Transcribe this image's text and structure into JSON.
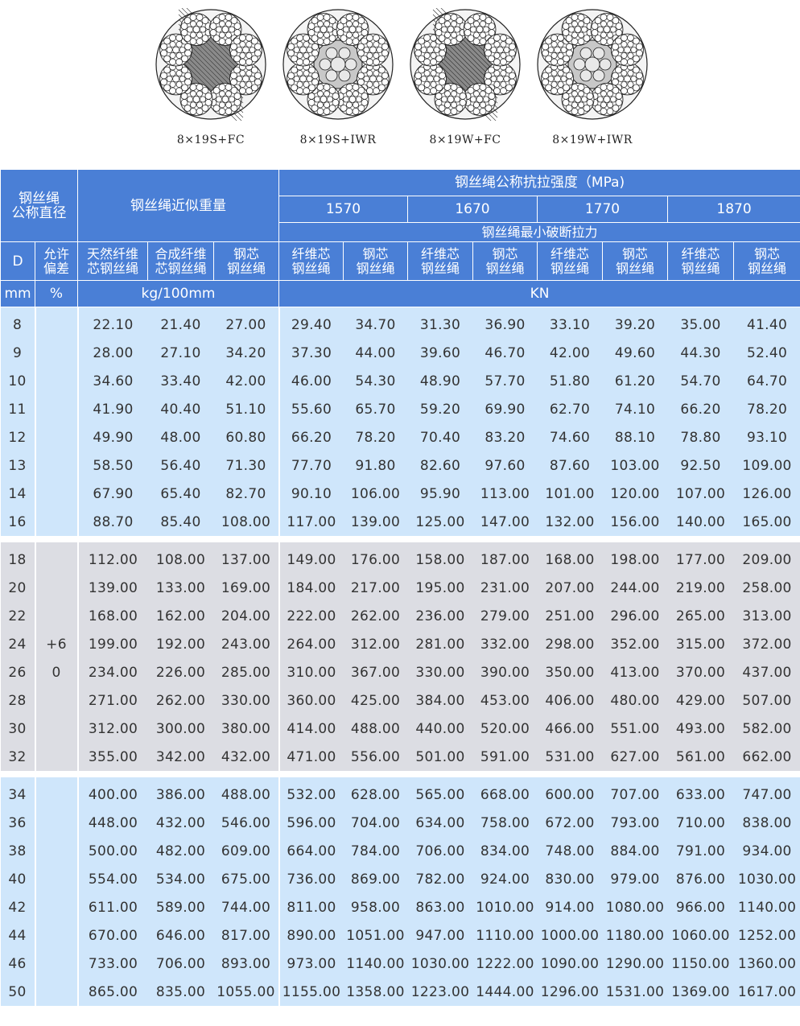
{
  "diagrams": [
    {
      "caption": "8×19S+FC",
      "core": "fiber"
    },
    {
      "caption": "8×19S+IWR",
      "core": "wire"
    },
    {
      "caption": "8×19W+FC",
      "core": "fiber"
    },
    {
      "caption": "8×19W+IWR",
      "core": "wire"
    }
  ],
  "table": {
    "h_diameter": "钢丝绳\n公称直径",
    "h_weight": "钢丝绳近似重量",
    "h_strength": "钢丝绳公称抗拉强度（MPa)",
    "grades": [
      "1570",
      "1670",
      "1770",
      "1870"
    ],
    "h_min_break": "钢丝绳最小破断拉力",
    "h_D": "D",
    "h_tol": "允许\n偏差",
    "h_w_natural": "天然纤维\n芯钢丝绳",
    "h_w_synthetic": "合成纤维\n芯钢丝绳",
    "h_w_steel": "钢芯\n钢丝绳",
    "h_fiber": "纤维芯\n钢丝绳",
    "h_steel": "钢芯\n钢丝绳",
    "u_mm": "mm",
    "u_pct": "%",
    "u_weight": "kg/100mm",
    "u_force": "KN",
    "tol_plus": "+6",
    "tol_zero": "0",
    "groups": [
      [
        [
          "8",
          "22.10",
          "21.40",
          "27.00",
          "29.40",
          "34.70",
          "31.30",
          "36.90",
          "33.10",
          "39.20",
          "35.00",
          "41.40"
        ],
        [
          "9",
          "28.00",
          "27.10",
          "34.20",
          "37.30",
          "44.00",
          "39.60",
          "46.70",
          "42.00",
          "49.60",
          "44.30",
          "52.40"
        ],
        [
          "10",
          "34.60",
          "33.40",
          "42.00",
          "46.00",
          "54.30",
          "48.90",
          "57.70",
          "51.80",
          "61.20",
          "54.70",
          "64.70"
        ],
        [
          "11",
          "41.90",
          "40.40",
          "51.10",
          "55.60",
          "65.70",
          "59.20",
          "69.90",
          "62.70",
          "74.10",
          "66.20",
          "78.20"
        ],
        [
          "12",
          "49.90",
          "48.00",
          "60.80",
          "66.20",
          "78.20",
          "70.40",
          "83.20",
          "74.60",
          "88.10",
          "78.80",
          "93.10"
        ],
        [
          "13",
          "58.50",
          "56.40",
          "71.30",
          "77.70",
          "91.80",
          "82.60",
          "97.60",
          "87.60",
          "103.00",
          "92.50",
          "109.00"
        ],
        [
          "14",
          "67.90",
          "65.40",
          "82.70",
          "90.10",
          "106.00",
          "95.90",
          "113.00",
          "101.00",
          "120.00",
          "107.00",
          "126.00"
        ],
        [
          "16",
          "88.70",
          "85.40",
          "108.00",
          "117.00",
          "139.00",
          "125.00",
          "147.00",
          "132.00",
          "156.00",
          "140.00",
          "165.00"
        ]
      ],
      [
        [
          "18",
          "112.00",
          "108.00",
          "137.00",
          "149.00",
          "176.00",
          "158.00",
          "187.00",
          "168.00",
          "198.00",
          "177.00",
          "209.00"
        ],
        [
          "20",
          "139.00",
          "133.00",
          "169.00",
          "184.00",
          "217.00",
          "195.00",
          "231.00",
          "207.00",
          "244.00",
          "219.00",
          "258.00"
        ],
        [
          "22",
          "168.00",
          "162.00",
          "204.00",
          "222.00",
          "262.00",
          "236.00",
          "279.00",
          "251.00",
          "296.00",
          "265.00",
          "313.00"
        ],
        [
          "24",
          "199.00",
          "192.00",
          "243.00",
          "264.00",
          "312.00",
          "281.00",
          "332.00",
          "298.00",
          "352.00",
          "315.00",
          "372.00"
        ],
        [
          "26",
          "234.00",
          "226.00",
          "285.00",
          "310.00",
          "367.00",
          "330.00",
          "390.00",
          "350.00",
          "413.00",
          "370.00",
          "437.00"
        ],
        [
          "28",
          "271.00",
          "262.00",
          "330.00",
          "360.00",
          "425.00",
          "384.00",
          "453.00",
          "406.00",
          "480.00",
          "429.00",
          "507.00"
        ],
        [
          "30",
          "312.00",
          "300.00",
          "380.00",
          "414.00",
          "488.00",
          "440.00",
          "520.00",
          "466.00",
          "551.00",
          "493.00",
          "582.00"
        ],
        [
          "32",
          "355.00",
          "342.00",
          "432.00",
          "471.00",
          "556.00",
          "501.00",
          "591.00",
          "531.00",
          "627.00",
          "561.00",
          "662.00"
        ]
      ],
      [
        [
          "34",
          "400.00",
          "386.00",
          "488.00",
          "532.00",
          "628.00",
          "565.00",
          "668.00",
          "600.00",
          "707.00",
          "633.00",
          "747.00"
        ],
        [
          "36",
          "448.00",
          "432.00",
          "546.00",
          "596.00",
          "704.00",
          "634.00",
          "758.00",
          "672.00",
          "793.00",
          "710.00",
          "838.00"
        ],
        [
          "38",
          "500.00",
          "482.00",
          "609.00",
          "664.00",
          "784.00",
          "706.00",
          "834.00",
          "748.00",
          "884.00",
          "791.00",
          "934.00"
        ],
        [
          "40",
          "554.00",
          "534.00",
          "675.00",
          "736.00",
          "869.00",
          "782.00",
          "924.00",
          "830.00",
          "979.00",
          "876.00",
          "1030.00"
        ],
        [
          "42",
          "611.00",
          "589.00",
          "744.00",
          "811.00",
          "958.00",
          "863.00",
          "1010.00",
          "914.00",
          "1080.00",
          "966.00",
          "1140.00"
        ],
        [
          "44",
          "670.00",
          "646.00",
          "817.00",
          "890.00",
          "1051.00",
          "947.00",
          "1110.00",
          "1000.00",
          "1180.00",
          "1060.00",
          "1252.00"
        ],
        [
          "46",
          "733.00",
          "706.00",
          "893.00",
          "973.00",
          "1140.00",
          "1030.00",
          "1222.00",
          "1090.00",
          "1290.00",
          "1150.00",
          "1360.00"
        ],
        [
          "50",
          "865.00",
          "835.00",
          "1055.00",
          "1155.00",
          "1358.00",
          "1223.00",
          "1444.00",
          "1296.00",
          "1531.00",
          "1369.00",
          "1617.00"
        ]
      ]
    ]
  },
  "colors": {
    "header": "#4a7fd6",
    "row_blue": "#cfe6fb",
    "row_gray": "#dcdde3"
  }
}
